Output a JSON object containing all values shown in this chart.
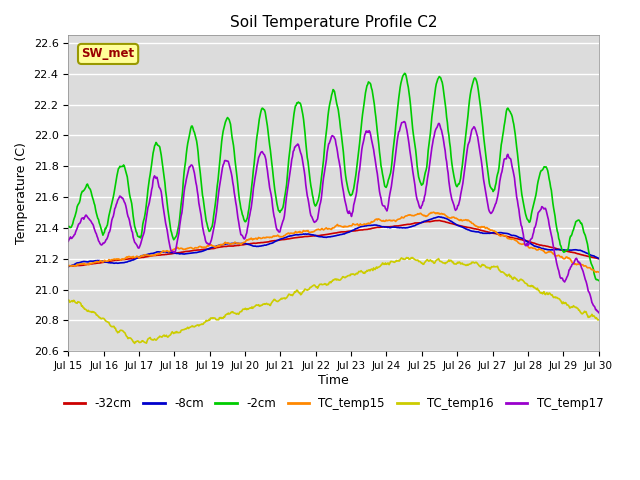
{
  "title": "Soil Temperature Profile C2",
  "xlabel": "Time",
  "ylabel": "Temperature (C)",
  "ylim": [
    20.6,
    22.65
  ],
  "xlim": [
    15,
    30
  ],
  "xticks": [
    15,
    16,
    17,
    18,
    19,
    20,
    21,
    22,
    23,
    24,
    25,
    26,
    27,
    28,
    29,
    30
  ],
  "xtick_labels": [
    "Jul 15",
    "Jul 16",
    "Jul 17",
    "Jul 18",
    "Jul 19",
    "Jul 20",
    "Jul 21",
    "Jul 22",
    "Jul 23",
    "Jul 24",
    "Jul 25",
    "Jul 26",
    "Jul 27",
    "Jul 28",
    "Jul 29",
    "Jul 30"
  ],
  "yticks": [
    20.6,
    20.8,
    21.0,
    21.2,
    21.4,
    21.6,
    21.8,
    22.0,
    22.2,
    22.4,
    22.6
  ],
  "bg_color": "#dcdcdc",
  "fig_color": "#ffffff",
  "grid_color": "#ffffff",
  "annotation_text": "SW_met",
  "annotation_bg": "#ffff99",
  "annotation_border": "#999900",
  "annotation_text_color": "#990000",
  "series": {
    "neg32cm": {
      "color": "#cc0000",
      "label": "-32cm",
      "lw": 1.2
    },
    "neg8cm": {
      "color": "#0000cc",
      "label": "-8cm",
      "lw": 1.2
    },
    "neg2cm": {
      "color": "#00cc00",
      "label": "-2cm",
      "lw": 1.2
    },
    "tc15": {
      "color": "#ff8800",
      "label": "TC_temp15",
      "lw": 1.2
    },
    "tc16": {
      "color": "#cccc00",
      "label": "TC_temp16",
      "lw": 1.2
    },
    "tc17": {
      "color": "#9900cc",
      "label": "TC_temp17",
      "lw": 1.2
    }
  }
}
